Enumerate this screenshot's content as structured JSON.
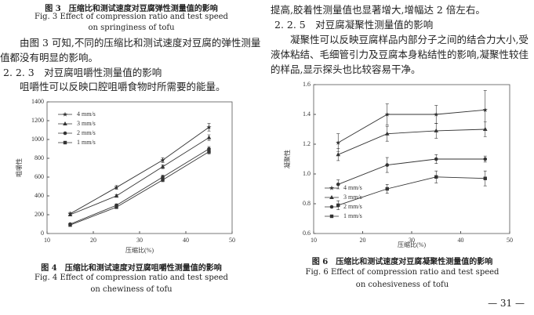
{
  "left": {
    "fig3_caption": [
      "图 3　压缩比和测试速度对豆腐弹性测量值的影响",
      "Fig. 3 Effect of compression ratio and test speed",
      "on springiness of tofu"
    ],
    "paragraph1": "由图 3 可知,不同的压缩比和测试速度对豆腐的弹性测量值都没有明显的影响。",
    "section": "2. 2. 3　对豆腐咀嚼性测量值的影响",
    "paragraph2": "咀嚼性可以反映口腔咀嚼食物时所需要的能量。",
    "fig4_caption": [
      "图 4　压缩比和测试速度对豆腐咀嚼性测量值的影响",
      "Fig. 4 Effect of compression ratio and test speed",
      "on chewiness of tofu"
    ]
  },
  "right": {
    "paragraph0": "提高,胶着性测量值也显著增大,增幅达 2 倍左右。",
    "section": "2. 2. 5　对豆腐凝聚性测量值的影响",
    "paragraph1": "凝聚性可以反映豆腐样品内部分子之间的结合力大小,受液体粘结、毛细管引力及豆腐本身粘结性的影响,凝聚性较佳的样品,显示探头也比较容易干净。",
    "fig6_caption": [
      "图 6　压缩比和测试速度对豆腐凝聚性测量值的影响",
      "Fig. 6 Effect of compression ratio and test speed",
      "on cohesiveness of tofu"
    ],
    "page_number": "— 31 —"
  },
  "chart_data": [
    {
      "type": "line",
      "y_label": "咀嚼性",
      "x_label": "压缩比(%)",
      "x": [
        15,
        25,
        35,
        45
      ],
      "xlim": [
        10,
        50
      ],
      "xticks": [
        10,
        20,
        30,
        40,
        50
      ],
      "ylim": [
        0,
        1400
      ],
      "yticks": [
        0,
        200,
        400,
        600,
        800,
        1000,
        1200,
        1400
      ],
      "legend": "upper left",
      "series": [
        {
          "name": "4 mm/s",
          "color": "#333333",
          "marker": "star",
          "values": [
            210,
            490,
            780,
            1130
          ],
          "errors": [
            15,
            20,
            25,
            40
          ]
        },
        {
          "name": "3 mm/s",
          "color": "#333333",
          "marker": "triangle",
          "values": [
            200,
            400,
            710,
            1020
          ],
          "errors": [
            10,
            15,
            20,
            30
          ]
        },
        {
          "name": "2 mm/s",
          "color": "#333333",
          "marker": "circle",
          "values": [
            100,
            300,
            600,
            900
          ],
          "errors": [
            10,
            15,
            20,
            25
          ]
        },
        {
          "name": "1 mm/s",
          "color": "#333333",
          "marker": "square",
          "values": [
            90,
            280,
            570,
            870
          ],
          "errors": [
            10,
            15,
            20,
            25
          ]
        }
      ]
    },
    {
      "type": "line",
      "y_label": "凝聚性",
      "x_label": "压缩比(%)",
      "x": [
        15,
        25,
        35,
        45
      ],
      "xlim": [
        10,
        50
      ],
      "xticks": [
        10,
        20,
        30,
        40,
        50
      ],
      "ylim": [
        0.6,
        1.6
      ],
      "yticks": [
        0.6,
        0.8,
        {
          "value": 1,
          "label": "1.0"
        },
        1.2,
        1.4,
        1.6
      ],
      "legend": "lower left",
      "series": [
        {
          "name": "4 mm/s",
          "color": "#333333",
          "marker": "star",
          "values": [
            1.21,
            1.4,
            1.4,
            1.43
          ],
          "errors": [
            0.06,
            0.07,
            0.06,
            0.13
          ]
        },
        {
          "name": "3 mm/s",
          "color": "#333333",
          "marker": "triangle",
          "values": [
            1.13,
            1.27,
            1.29,
            1.3
          ],
          "errors": [
            0.04,
            0.05,
            0.05,
            0.05
          ]
        },
        {
          "name": "2 mm/s",
          "color": "#333333",
          "marker": "circle",
          "values": [
            0.93,
            1.06,
            1.1,
            1.1
          ],
          "errors": [
            0.03,
            0.05,
            0.03,
            0.02
          ]
        },
        {
          "name": "1 mm/s",
          "color": "#333333",
          "marker": "square",
          "values": [
            0.79,
            0.9,
            0.98,
            0.97
          ],
          "errors": [
            0.03,
            0.03,
            0.04,
            0.05
          ]
        }
      ]
    }
  ]
}
